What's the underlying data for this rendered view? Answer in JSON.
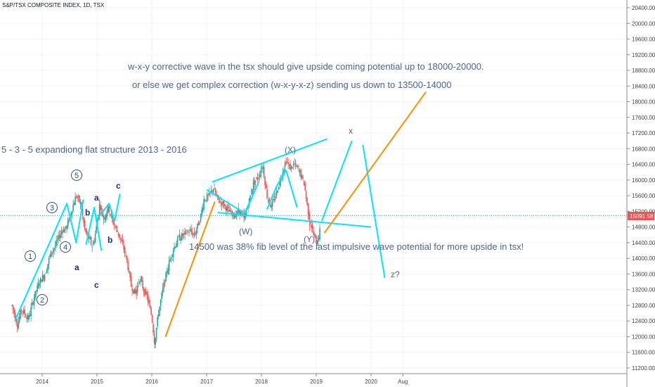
{
  "chart_data": {
    "type": "candlestick",
    "title": "S&P/TSX COMPOSITE INDEX, 1D, TSX",
    "last_price": "15091.58",
    "x_ticks": [
      "2014",
      "2015",
      "2016",
      "2017",
      "2018",
      "2019",
      "2020",
      "Aug"
    ],
    "y_ticks": [
      "20400.00",
      "20000.00",
      "19600.00",
      "19200.00",
      "18800.00",
      "18400.00",
      "18000.00",
      "17600.00",
      "17200.00",
      "16800.00",
      "16400.00",
      "16000.00",
      "15600.00",
      "15200.00",
      "14800.00",
      "14400.00",
      "14000.00",
      "13600.00",
      "13200.00",
      "12800.00",
      "12400.00",
      "12000.00",
      "11600.00",
      "11200.00"
    ],
    "ylim": [
      11100,
      20600
    ],
    "price_path": [
      [
        2013.45,
        12800
      ],
      [
        2013.55,
        12300
      ],
      [
        2013.62,
        12700
      ],
      [
        2013.75,
        12450
      ],
      [
        2013.85,
        13000
      ],
      [
        2013.95,
        13400
      ],
      [
        2014.05,
        13600
      ],
      [
        2014.15,
        14100
      ],
      [
        2014.25,
        14350
      ],
      [
        2014.35,
        14700
      ],
      [
        2014.45,
        14800
      ],
      [
        2014.55,
        15300
      ],
      [
        2014.62,
        15600
      ],
      [
        2014.7,
        15400
      ],
      [
        2014.78,
        14700
      ],
      [
        2014.85,
        14500
      ],
      [
        2014.92,
        14300
      ],
      [
        2014.98,
        14700
      ],
      [
        2015.05,
        15400
      ],
      [
        2015.12,
        15000
      ],
      [
        2015.2,
        15300
      ],
      [
        2015.3,
        14900
      ],
      [
        2015.4,
        14600
      ],
      [
        2015.5,
        14200
      ],
      [
        2015.55,
        13900
      ],
      [
        2015.62,
        13300
      ],
      [
        2015.7,
        13100
      ],
      [
        2015.78,
        13500
      ],
      [
        2015.85,
        13200
      ],
      [
        2015.92,
        13000
      ],
      [
        2016.0,
        12500
      ],
      [
        2016.05,
        11850
      ],
      [
        2016.12,
        12600
      ],
      [
        2016.2,
        13200
      ],
      [
        2016.28,
        13700
      ],
      [
        2016.38,
        14200
      ],
      [
        2016.48,
        14500
      ],
      [
        2016.58,
        14600
      ],
      [
        2016.68,
        14700
      ],
      [
        2016.78,
        14600
      ],
      [
        2016.88,
        15000
      ],
      [
        2016.95,
        15500
      ],
      [
        2017.05,
        15600
      ],
      [
        2017.12,
        15800
      ],
      [
        2017.2,
        15500
      ],
      [
        2017.3,
        15400
      ],
      [
        2017.4,
        15200
      ],
      [
        2017.5,
        15100
      ],
      [
        2017.6,
        15200
      ],
      [
        2017.68,
        15000
      ],
      [
        2017.78,
        15500
      ],
      [
        2017.85,
        15900
      ],
      [
        2017.95,
        16100
      ],
      [
        2018.02,
        16400
      ],
      [
        2018.1,
        15600
      ],
      [
        2018.18,
        15300
      ],
      [
        2018.28,
        15700
      ],
      [
        2018.38,
        16200
      ],
      [
        2018.45,
        16500
      ],
      [
        2018.52,
        16300
      ],
      [
        2018.6,
        16400
      ],
      [
        2018.7,
        16200
      ],
      [
        2018.78,
        15900
      ],
      [
        2018.85,
        15200
      ],
      [
        2018.9,
        14900
      ],
      [
        2018.95,
        14600
      ],
      [
        2019.0,
        14400
      ],
      [
        2019.05,
        14600
      ],
      [
        2019.08,
        14800
      ]
    ],
    "annotations": {
      "note_1": "w-x-y corrective wave in the tsx should give upside coming potential up to 18000-20000.",
      "note_2": "or else we get complex correction (w-x-y-x-z) sending us down to 13500-14000",
      "note_3": "5 - 3 - 5 expandiong flat structure 2013 - 2016",
      "note_4": "14500 was 38% fib level of the last impulsive wave potential for more upside in tsx!",
      "wave_x_top": "(X)",
      "wave_w": "(W)",
      "wave_y": "(Y)",
      "wave_x_future": "x",
      "wave_z": "z?",
      "impulse": [
        "1",
        "2",
        "3",
        "4",
        "5"
      ],
      "abc_1": [
        "a",
        "b",
        "c"
      ],
      "abc_2": [
        "a",
        "b",
        "c"
      ]
    },
    "colors": {
      "up": "#26a69a",
      "down": "#ef5350",
      "wave_line": "#00e5ff",
      "trend_line": "#ff8f00",
      "text": "#50658c",
      "price_tag": "#ef5350",
      "price_line": "#26a69a"
    }
  }
}
